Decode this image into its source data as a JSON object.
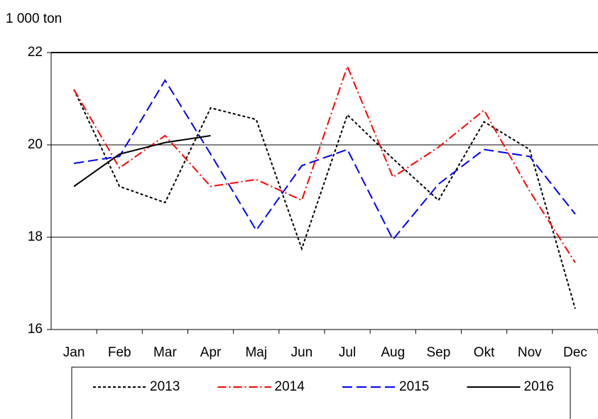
{
  "chart_data": {
    "type": "line",
    "y_label": "1 000 ton",
    "categories": [
      "Jan",
      "Feb",
      "Mar",
      "Apr",
      "Maj",
      "Jun",
      "Jul",
      "Aug",
      "Sep",
      "Okt",
      "Nov",
      "Dec"
    ],
    "series": [
      {
        "name": "2013",
        "color": "#000000",
        "dash": "4,3",
        "values": [
          21.2,
          19.1,
          18.75,
          20.8,
          20.55,
          17.75,
          20.65,
          19.7,
          18.8,
          20.5,
          19.9,
          16.45
        ]
      },
      {
        "name": "2014",
        "color": "#ff0000",
        "dash": "12,4,2,4",
        "values": [
          21.2,
          19.5,
          20.2,
          19.1,
          19.25,
          18.8,
          21.7,
          19.3,
          19.95,
          20.75,
          19.0,
          17.45
        ]
      },
      {
        "name": "2015",
        "color": "#0000ff",
        "dash": "14,6",
        "values": [
          19.6,
          19.75,
          21.4,
          19.8,
          18.15,
          19.55,
          19.9,
          17.95,
          19.15,
          19.9,
          19.75,
          18.5
        ]
      },
      {
        "name": "2016",
        "color": "#000000",
        "dash": "none",
        "values": [
          19.1,
          19.8,
          20.05,
          20.2,
          null,
          null,
          null,
          null,
          null,
          null,
          null,
          null
        ]
      }
    ],
    "ylim": [
      16,
      22
    ],
    "yticks": [
      16,
      18,
      20,
      22
    ],
    "grid": true,
    "legend": "bottom"
  }
}
